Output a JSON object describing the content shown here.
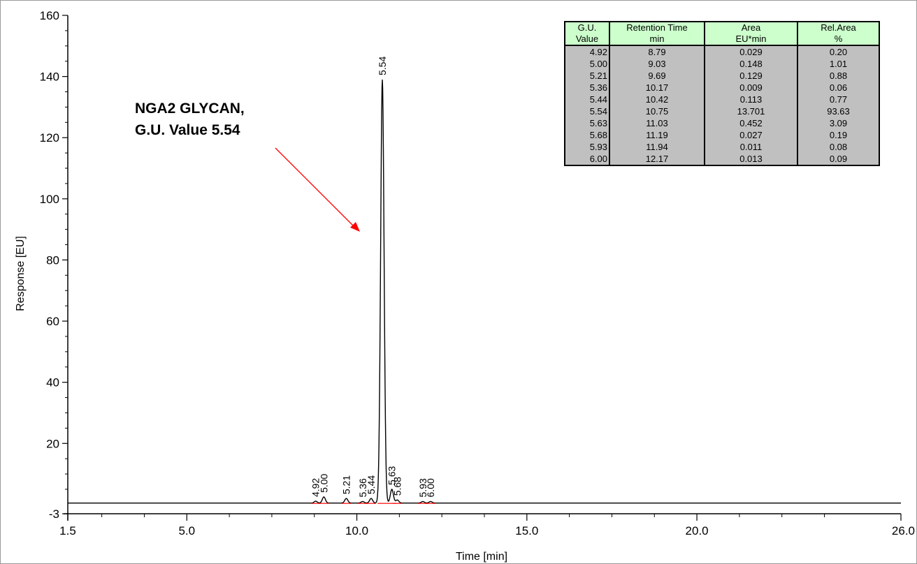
{
  "chart_data": {
    "type": "line",
    "title": "",
    "xlabel": "Time [min]",
    "ylabel": "Response [EU]",
    "xlim": [
      1.5,
      26.0
    ],
    "ylim": [
      -3,
      160
    ],
    "x_tick_labels": [
      "1.5",
      "5.0",
      "10.0",
      "15.0",
      "20.0",
      "26.0"
    ],
    "y_tick_labels": [
      "-3",
      "20",
      "40",
      "60",
      "80",
      "100",
      "120",
      "140",
      "160"
    ],
    "baseline": 0.5,
    "peaks": [
      {
        "label": "4.92",
        "time": 8.79,
        "height": 0.6
      },
      {
        "label": "5.00",
        "time": 9.03,
        "height": 2.0
      },
      {
        "label": "5.21",
        "time": 9.69,
        "height": 1.5
      },
      {
        "label": "5.36",
        "time": 10.17,
        "height": 0.5
      },
      {
        "label": "5.44",
        "time": 10.42,
        "height": 1.5
      },
      {
        "label": "5.54",
        "time": 10.75,
        "height": 138.5
      },
      {
        "label": "5.63",
        "time": 11.03,
        "height": 4.5
      },
      {
        "label": "5.68",
        "time": 11.19,
        "height": 1.0
      },
      {
        "label": "5.93",
        "time": 11.94,
        "height": 0.5
      },
      {
        "label": "6.00",
        "time": 12.17,
        "height": 0.5
      }
    ],
    "annotation": {
      "lines": [
        "NGA2 GLYCAN,",
        "G.U. Value 5.54"
      ],
      "arrow_color": "#ff0000"
    },
    "colors": {
      "trace": "#000000",
      "baseline_marks": "#ff0000"
    },
    "grid": false
  },
  "table": {
    "headers": [
      {
        "line1": "G.U.",
        "line2": "Value"
      },
      {
        "line1": "Retention Time",
        "line2": "min"
      },
      {
        "line1": "Area",
        "line2": "EU*min"
      },
      {
        "line1": "Rel.Area",
        "line2": "%"
      }
    ],
    "rows": [
      [
        "4.92",
        "8.79",
        "0.029",
        "0.20"
      ],
      [
        "5.00",
        "9.03",
        "0.148",
        "1.01"
      ],
      [
        "5.21",
        "9.69",
        "0.129",
        "0.88"
      ],
      [
        "5.36",
        "10.17",
        "0.009",
        "0.06"
      ],
      [
        "5.44",
        "10.42",
        "0.113",
        "0.77"
      ],
      [
        "5.54",
        "10.75",
        "13.701",
        "93.63"
      ],
      [
        "5.63",
        "11.03",
        "0.452",
        "3.09"
      ],
      [
        "5.68",
        "11.19",
        "0.027",
        "0.19"
      ],
      [
        "5.93",
        "11.94",
        "0.011",
        "0.08"
      ],
      [
        "6.00",
        "12.17",
        "0.013",
        "0.09"
      ]
    ],
    "colors": {
      "header_bg": "#ccffcc",
      "body_bg": "#c0c0c0"
    }
  }
}
